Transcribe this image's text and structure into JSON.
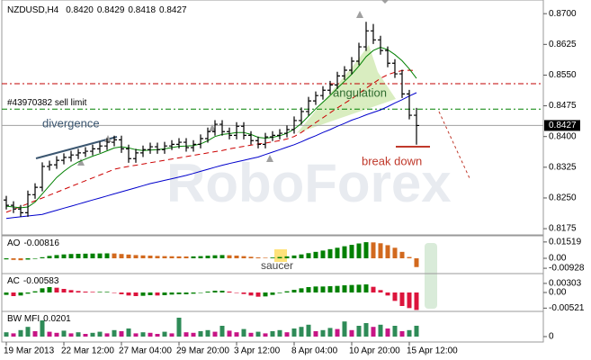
{
  "chart_data": [
    {
      "type": "ohlc",
      "symbol": "NZDUSD,H4",
      "header_values": [
        {
          "value": 0.842,
          "label": "0.8420"
        },
        {
          "value": 0.8429,
          "label": "0.8429"
        },
        {
          "value": 0.8418,
          "label": "0.8418"
        },
        {
          "value": 0.8427,
          "label": "0.8427"
        }
      ],
      "watermark": "RoboForex",
      "categories": [
        "19 Mar 2013",
        null,
        null,
        null,
        null,
        null,
        null,
        null,
        "22 Mar 12:00",
        null,
        null,
        null,
        null,
        null,
        null,
        null,
        "27 Mar 04:00",
        null,
        null,
        null,
        null,
        null,
        null,
        null,
        "29 Mar 20:00",
        null,
        null,
        null,
        null,
        null,
        null,
        null,
        "3 Apr 12:00",
        null,
        null,
        null,
        null,
        null,
        null,
        null,
        "8 Apr 04:00",
        null,
        null,
        null,
        null,
        null,
        null,
        null,
        "10 Apr 20:00",
        null,
        null,
        null,
        null,
        null,
        null,
        null,
        "15 Apr 12:00",
        null
      ],
      "open": [
        0.8245,
        0.8232,
        0.8223,
        0.8214,
        0.8258,
        0.8276,
        0.8327,
        0.8331,
        0.8342,
        0.8349,
        0.8355,
        0.836,
        0.8364,
        0.837,
        0.8377,
        0.8386,
        0.8392,
        0.837,
        0.8346,
        0.836,
        0.8368,
        0.8375,
        0.8368,
        0.8377,
        0.8381,
        0.8386,
        0.8373,
        0.8381,
        0.8395,
        0.8412,
        0.843,
        0.8412,
        0.8403,
        0.8425,
        0.8403,
        0.839,
        0.8381,
        0.8399,
        0.8403,
        0.8408,
        0.8417,
        0.8439,
        0.8461,
        0.8487,
        0.85,
        0.8513,
        0.8526,
        0.8548,
        0.8562,
        0.8584,
        0.8619,
        0.8658,
        0.8636,
        0.861,
        0.8579,
        0.8553,
        0.8504,
        0.8452
      ],
      "high": [
        0.8255,
        0.8242,
        0.8233,
        0.8268,
        0.8286,
        0.8337,
        0.8341,
        0.8352,
        0.8359,
        0.8365,
        0.837,
        0.8374,
        0.838,
        0.8387,
        0.8396,
        0.8402,
        0.8402,
        0.838,
        0.837,
        0.8378,
        0.8385,
        0.8385,
        0.8387,
        0.8391,
        0.8396,
        0.8396,
        0.8391,
        0.8405,
        0.8422,
        0.844,
        0.844,
        0.8422,
        0.8435,
        0.8435,
        0.8413,
        0.84,
        0.8409,
        0.8413,
        0.8418,
        0.8427,
        0.8449,
        0.8471,
        0.8497,
        0.851,
        0.8523,
        0.8536,
        0.8558,
        0.8572,
        0.8594,
        0.8629,
        0.868,
        0.8675,
        0.8646,
        0.862,
        0.8589,
        0.8563,
        0.8514,
        0.847
      ],
      "low": [
        0.8222,
        0.8213,
        0.8204,
        0.8204,
        0.8248,
        0.8266,
        0.8317,
        0.8321,
        0.8332,
        0.8339,
        0.8345,
        0.835,
        0.8354,
        0.836,
        0.8367,
        0.8376,
        0.836,
        0.8336,
        0.8336,
        0.835,
        0.8358,
        0.8358,
        0.8358,
        0.8367,
        0.8371,
        0.8363,
        0.8363,
        0.8371,
        0.8385,
        0.8402,
        0.8402,
        0.8393,
        0.8393,
        0.8393,
        0.838,
        0.8371,
        0.8371,
        0.8389,
        0.8393,
        0.8398,
        0.8407,
        0.8429,
        0.8451,
        0.8477,
        0.849,
        0.8503,
        0.8516,
        0.8538,
        0.8552,
        0.8574,
        0.8609,
        0.8626,
        0.86,
        0.8569,
        0.8543,
        0.8494,
        0.8442,
        0.838
      ],
      "close": [
        0.8232,
        0.8223,
        0.8214,
        0.8258,
        0.8276,
        0.8327,
        0.8331,
        0.8342,
        0.8349,
        0.8355,
        0.836,
        0.8364,
        0.837,
        0.8377,
        0.8386,
        0.8392,
        0.837,
        0.8346,
        0.836,
        0.8368,
        0.8375,
        0.8368,
        0.8377,
        0.8381,
        0.8386,
        0.8373,
        0.8381,
        0.8395,
        0.8412,
        0.843,
        0.8412,
        0.8403,
        0.8425,
        0.8403,
        0.839,
        0.8381,
        0.8399,
        0.8403,
        0.8408,
        0.8417,
        0.8439,
        0.8461,
        0.8487,
        0.85,
        0.8513,
        0.8526,
        0.8548,
        0.8562,
        0.8584,
        0.8619,
        0.8658,
        0.8636,
        0.861,
        0.8579,
        0.8553,
        0.8504,
        0.8452,
        0.8427
      ],
      "bar_color": "#000000",
      "moving_averages": [
        {
          "color": "#0000cc",
          "dash": false,
          "values": [
            0.82,
            0.8202,
            0.8204,
            0.8206,
            0.8208,
            0.821,
            0.8215,
            0.822,
            0.8225,
            0.823,
            0.8235,
            0.824,
            0.8245,
            0.825,
            0.8255,
            0.826,
            0.8265,
            0.827,
            0.8275,
            0.828,
            0.8285,
            0.8289,
            0.8293,
            0.8297,
            0.8301,
            0.8305,
            0.831,
            0.8315,
            0.832,
            0.8325,
            0.833,
            0.8334,
            0.8338,
            0.8342,
            0.8346,
            0.835,
            0.8356,
            0.8362,
            0.8368,
            0.8374,
            0.838,
            0.8387,
            0.8395,
            0.8402,
            0.841,
            0.8417,
            0.8425,
            0.8432,
            0.844,
            0.8446,
            0.8453,
            0.8459,
            0.8465,
            0.8473,
            0.8482,
            0.849,
            0.8499,
            0.8507
          ]
        },
        {
          "color": "#cc0000",
          "dash": true,
          "values": [
            0.8215,
            0.8222,
            0.8229,
            0.8236,
            0.8243,
            0.825,
            0.8257,
            0.8264,
            0.8271,
            0.8278,
            0.8285,
            0.8292,
            0.8299,
            0.8306,
            0.8313,
            0.832,
            0.8324,
            0.8327,
            0.833,
            0.8333,
            0.8336,
            0.8339,
            0.8342,
            0.8345,
            0.8348,
            0.8351,
            0.8354,
            0.8357,
            0.836,
            0.8363,
            0.8366,
            0.837,
            0.8373,
            0.8376,
            0.8379,
            0.8382,
            0.8384,
            0.8387,
            0.839,
            0.8394,
            0.84,
            0.841,
            0.8422,
            0.8434,
            0.8446,
            0.8458,
            0.847,
            0.8481,
            0.8492,
            0.8505,
            0.8518,
            0.853,
            0.8542,
            0.8551,
            0.8557,
            0.8561,
            0.8562,
            0.8561
          ]
        },
        {
          "color": "#008000",
          "dash": false,
          "values": [
            0.823,
            0.8228,
            0.8226,
            0.8228,
            0.824,
            0.826,
            0.828,
            0.83,
            0.8315,
            0.8328,
            0.8338,
            0.8345,
            0.8352,
            0.8358,
            0.8365,
            0.8372,
            0.8375,
            0.8372,
            0.8368,
            0.8366,
            0.8367,
            0.8368,
            0.837,
            0.8373,
            0.8376,
            0.8377,
            0.8378,
            0.8382,
            0.839,
            0.84,
            0.8405,
            0.8407,
            0.841,
            0.841,
            0.8405,
            0.8398,
            0.8396,
            0.8398,
            0.8402,
            0.8408,
            0.8418,
            0.8432,
            0.845,
            0.8468,
            0.8484,
            0.85,
            0.8518,
            0.8535,
            0.8552,
            0.8572,
            0.8595,
            0.861,
            0.8618,
            0.8612,
            0.86,
            0.8585,
            0.8565,
            0.8542
          ]
        }
      ],
      "ylim": [
        0.8162,
        0.8729
      ],
      "yticks": [
        {
          "value": 0.87,
          "label": "0.8700"
        },
        {
          "value": 0.8625,
          "label": "0.8625"
        },
        {
          "value": 0.855,
          "label": "0.8550"
        },
        {
          "value": 0.8475,
          "label": "0.8475"
        },
        {
          "value": 0.84,
          "label": "0.8400"
        },
        {
          "value": 0.8325,
          "label": "0.8325"
        },
        {
          "value": 0.825,
          "label": "0.8250"
        },
        {
          "value": 0.8175,
          "label": "0.8175"
        }
      ],
      "last_price": {
        "value": 0.8427,
        "label": "0.8427"
      },
      "levels": [
        {
          "value": 0.8529,
          "color": "#c00000"
        },
        {
          "value": 0.8467,
          "color": "#008000",
          "label": "#43970382 sell limit"
        }
      ],
      "annotations": [
        {
          "text": "divergence",
          "color": "#3b5670"
        },
        {
          "text": "angulation",
          "color": "#2f6b2f"
        },
        {
          "text": "break down",
          "color": "#c0392b"
        }
      ]
    },
    {
      "type": "histogram",
      "title": "AO",
      "last": -0.00816,
      "values": [
        -0.001,
        -0.0015,
        -0.0018,
        -0.0012,
        -0.0005,
        0.001,
        0.0022,
        0.003,
        0.0036,
        0.004,
        0.0042,
        0.0043,
        0.0044,
        0.0045,
        0.0046,
        0.0045,
        0.004,
        0.0035,
        0.003,
        0.0027,
        0.0025,
        0.0022,
        0.002,
        0.0019,
        0.0018,
        0.0017,
        0.0018,
        0.002,
        0.0024,
        0.0028,
        0.003,
        0.0028,
        0.0025,
        0.002,
        0.0014,
        0.0008,
        0.0005,
        0.0007,
        0.0012,
        0.0018,
        0.0026,
        0.0036,
        0.0048,
        0.006,
        0.0072,
        0.0085,
        0.0098,
        0.0112,
        0.0125,
        0.0138,
        0.015,
        0.0148,
        0.014,
        0.0122,
        0.0098,
        0.006,
        0.0012,
        -0.00816
      ],
      "up_color": "#008000",
      "down_color": "#d2691e",
      "ylim": [
        -0.0134,
        0.0201
      ],
      "yticks": [
        0.01519,
        {
          "value": 0,
          "label": "0.00"
        },
        -0.00928
      ],
      "annotations": [
        {
          "text": "saucer",
          "color": "#444444"
        }
      ]
    },
    {
      "type": "histogram",
      "title": "AC",
      "last": -0.00583,
      "values": [
        -0.0008,
        -0.0012,
        -0.001,
        -0.0004,
        0.0004,
        0.0014,
        0.0018,
        0.0016,
        0.0012,
        0.0008,
        0.0005,
        0.0003,
        0.0002,
        0.0002,
        0.0002,
        0.0,
        -0.0006,
        -0.001,
        -0.0012,
        -0.0011,
        -0.0009,
        -0.001,
        -0.0009,
        -0.0007,
        -0.0006,
        -0.0006,
        -0.0004,
        -0.0001,
        0.0003,
        0.0006,
        0.0006,
        0.0003,
        0.0,
        -0.0005,
        -0.001,
        -0.0014,
        -0.0013,
        -0.0008,
        -0.0002,
        0.0004,
        0.0009,
        0.0014,
        0.0018,
        0.002,
        0.002,
        0.0021,
        0.0022,
        0.0024,
        0.0025,
        0.0026,
        0.0027,
        0.0019,
        0.0008,
        -0.001,
        -0.0028,
        -0.0045,
        -0.0052,
        -0.00583
      ],
      "up_color": "#008000",
      "down_color": "#dc143c",
      "ylim": [
        -0.006,
        0.006
      ],
      "yticks": [
        0.00303,
        {
          "value": 0,
          "label": "0.00"
        },
        -0.00521
      ]
    },
    {
      "type": "histogram",
      "title": "BW MFI",
      "last": 0.0201,
      "values": [
        0.008,
        0.006,
        0.012,
        0.018,
        0.01,
        0.03,
        0.009,
        0.007,
        0.011,
        0.006,
        0.008,
        0.005,
        0.007,
        0.009,
        0.006,
        0.012,
        0.01,
        0.015,
        0.006,
        0.008,
        0.007,
        0.005,
        0.009,
        0.006,
        0.035,
        0.008,
        0.007,
        0.01,
        0.012,
        0.009,
        0.02,
        0.011,
        0.008,
        0.014,
        0.007,
        0.009,
        0.006,
        0.01,
        0.012,
        0.008,
        0.015,
        0.018,
        0.022,
        0.01,
        0.012,
        0.016,
        0.014,
        0.028,
        0.012,
        0.02,
        0.025,
        0.018,
        0.022,
        0.015,
        0.02,
        0.01,
        0.012,
        0.0201
      ],
      "up_color": "#2e8b57",
      "down_color": "#c71585",
      "ylim": [
        0,
        0.04
      ],
      "yticks": [
        0
      ]
    }
  ]
}
